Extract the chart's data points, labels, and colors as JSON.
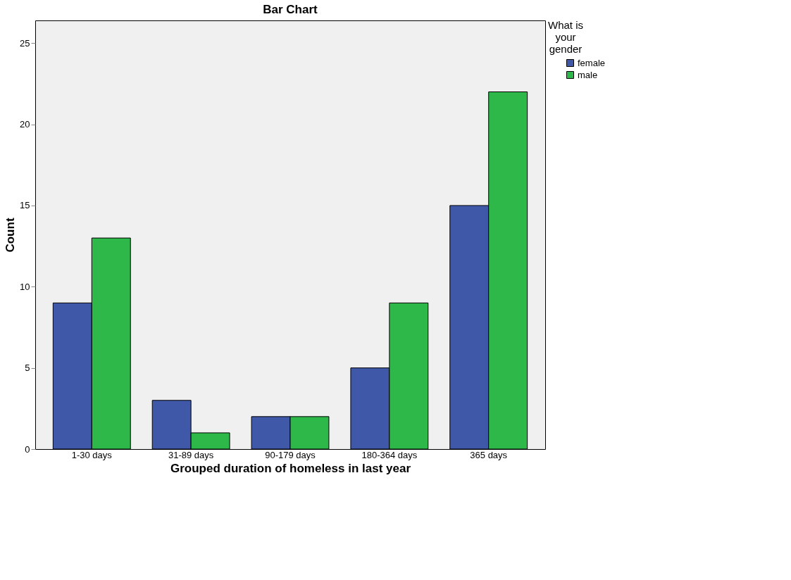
{
  "chart_data": {
    "type": "bar",
    "title": "Bar Chart",
    "xlabel": "Grouped duration of homeless in last year",
    "ylabel": "Count",
    "legend_title": "What is your gender",
    "categories": [
      "1-30 days",
      "31-89 days",
      "90-179 days",
      "180-364 days",
      "365 days"
    ],
    "series": [
      {
        "name": "female",
        "color": "#3f58a8",
        "values": [
          9,
          3,
          2,
          5,
          15
        ]
      },
      {
        "name": "male",
        "color": "#2eb84a",
        "values": [
          13,
          1,
          2,
          9,
          22
        ]
      }
    ],
    "ylim": [
      0,
      26.4
    ],
    "yticks": [
      0,
      5,
      10,
      15,
      20,
      25
    ],
    "grid": false,
    "legend": "top right"
  }
}
